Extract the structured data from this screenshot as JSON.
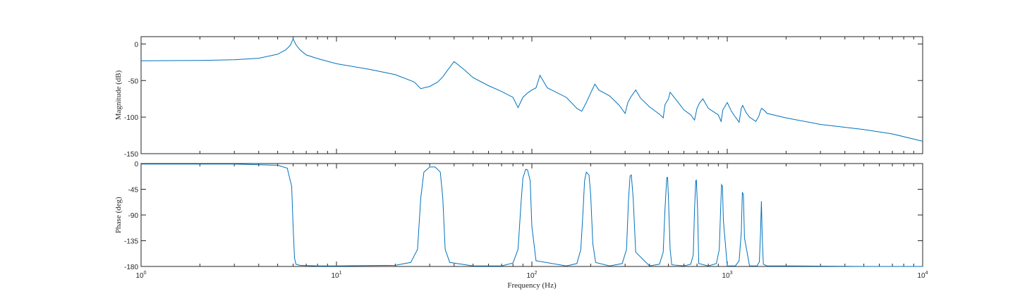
{
  "chart_data": [
    {
      "type": "line",
      "title": "",
      "xlabel": "",
      "ylabel": "Magnitude (dB)",
      "xscale": "log",
      "xlim": [
        1,
        10000
      ],
      "ylim": [
        -150,
        10
      ],
      "yticks": [
        0,
        -50,
        -100,
        -150
      ],
      "ytick_labels": [
        "0",
        "-50",
        "-100",
        "-150"
      ],
      "grid": false,
      "line_color": "#0072BD",
      "x": [
        1,
        2,
        3,
        4,
        5,
        5.5,
        5.8,
        6.0,
        6.2,
        6.5,
        7,
        8,
        10,
        15,
        20,
        25,
        27,
        30,
        33,
        35,
        37,
        40,
        45,
        50,
        60,
        70,
        80,
        85,
        90,
        95,
        100,
        105,
        110,
        120,
        150,
        170,
        180,
        190,
        200,
        210,
        220,
        250,
        280,
        300,
        310,
        320,
        340,
        360,
        400,
        450,
        470,
        480,
        500,
        510,
        550,
        600,
        650,
        680,
        700,
        720,
        750,
        800,
        900,
        930,
        950,
        1000,
        1050,
        1100,
        1150,
        1180,
        1200,
        1250,
        1300,
        1400,
        1450,
        1480,
        1500,
        1550,
        1600,
        2000,
        3000,
        5000,
        7000,
        10000
      ],
      "y": [
        -23,
        -22.5,
        -21.5,
        -19.5,
        -14,
        -8,
        -2,
        7,
        -1,
        -8,
        -15,
        -20,
        -27,
        -35,
        -42,
        -52,
        -61,
        -58,
        -52,
        -45,
        -36,
        -24,
        -35,
        -46,
        -57,
        -65,
        -73,
        -87,
        -73,
        -67,
        -63,
        -60,
        -43,
        -60,
        -73,
        -88,
        -92,
        -80,
        -67,
        -55,
        -63,
        -71,
        -84,
        -95,
        -80,
        -73,
        -63,
        -74,
        -86,
        -96,
        -101,
        -83,
        -75,
        -66,
        -77,
        -90,
        -97,
        -104,
        -88,
        -81,
        -75,
        -88,
        -97,
        -106,
        -90,
        -80,
        -92,
        -100,
        -107,
        -88,
        -84,
        -94,
        -100,
        -106,
        -99,
        -91,
        -88,
        -91,
        -95,
        -101,
        -110,
        -117,
        -123,
        -133
      ]
    },
    {
      "type": "line",
      "title": "",
      "xlabel": "Frequency (Hz)",
      "ylabel": "Phase (deg)",
      "xscale": "log",
      "xlim": [
        1,
        10000
      ],
      "ylim": [
        -180,
        0
      ],
      "xticks": [
        1,
        10,
        100,
        1000,
        10000
      ],
      "xtick_labels": [
        "10^0",
        "10^1",
        "10^2",
        "10^3",
        "10^4"
      ],
      "yticks": [
        0,
        -45,
        -90,
        -135,
        -180
      ],
      "ytick_labels": [
        "0",
        "-45",
        "-90",
        "-135",
        "-180"
      ],
      "grid": false,
      "line_color": "#0072BD",
      "x": [
        1,
        3,
        5,
        5.6,
        5.9,
        6.0,
        6.1,
        6.2,
        6.5,
        8,
        10,
        20,
        24,
        26,
        27,
        28,
        30,
        32,
        34,
        35,
        36,
        38,
        50,
        70,
        80,
        85,
        88,
        90,
        93,
        95,
        98,
        100,
        105,
        150,
        170,
        178,
        183,
        186,
        190,
        196,
        200,
        205,
        212,
        250,
        290,
        305,
        312,
        318,
        323,
        330,
        340,
        400,
        450,
        470,
        480,
        490,
        495,
        500,
        510,
        520,
        600,
        650,
        670,
        680,
        690,
        695,
        705,
        715,
        800,
        880,
        910,
        925,
        935,
        945,
        955,
        1000,
        1100,
        1150,
        1180,
        1195,
        1210,
        1225,
        1300,
        1420,
        1460,
        1480,
        1495,
        1510,
        1530,
        1600,
        2000,
        5000,
        10000
      ],
      "y": [
        -1,
        -1,
        -3,
        -8,
        -40,
        -110,
        -165,
        -176,
        -178,
        -179,
        -179,
        -178,
        -173,
        -150,
        -60,
        -15,
        -6,
        -6,
        -15,
        -60,
        -150,
        -173,
        -179,
        -179,
        -174,
        -150,
        -70,
        -25,
        -10,
        -11,
        -30,
        -110,
        -170,
        -179,
        -175,
        -150,
        -80,
        -30,
        -15,
        -20,
        -55,
        -140,
        -173,
        -179,
        -175,
        -150,
        -65,
        -22,
        -20,
        -60,
        -155,
        -179,
        -176,
        -155,
        -80,
        -25,
        -24,
        -60,
        -150,
        -177,
        -179,
        -176,
        -160,
        -80,
        -30,
        -29,
        -80,
        -175,
        -179,
        -175,
        -150,
        -80,
        -37,
        -40,
        -100,
        -179,
        -179,
        -170,
        -120,
        -50,
        -55,
        -130,
        -179,
        -179,
        -172,
        -120,
        -66,
        -130,
        -176,
        -179,
        -179,
        -180,
        -180
      ]
    }
  ]
}
